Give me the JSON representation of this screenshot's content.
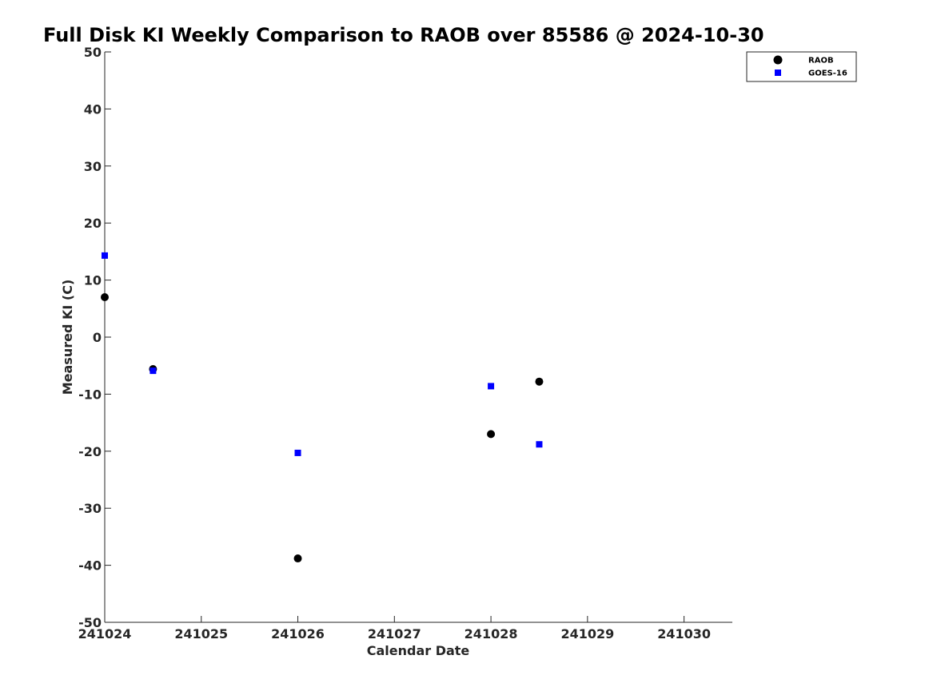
{
  "chart_data": {
    "type": "scatter",
    "title": "Full Disk KI Weekly Comparison to RAOB over 85586 @ 2024-10-30",
    "xlabel": "Calendar Date",
    "ylabel": "Measured KI (C)",
    "xlim": [
      241024,
      241030.5
    ],
    "ylim": [
      -50,
      50
    ],
    "x_ticks": [
      241024,
      241025,
      241026,
      241027,
      241028,
      241029,
      241030
    ],
    "x_tick_labels": [
      "241024",
      "241025",
      "241026",
      "241027",
      "241028",
      "241029",
      "241030"
    ],
    "y_ticks": [
      -50,
      -40,
      -30,
      -20,
      -10,
      0,
      10,
      20,
      30,
      40,
      50
    ],
    "y_tick_labels": [
      "-50",
      "-40",
      "-30",
      "-20",
      "-10",
      "0",
      "10",
      "20",
      "30",
      "40",
      "50"
    ],
    "grid": false,
    "legend_position": "top-right",
    "series": [
      {
        "name": "RAOB",
        "marker": "circle",
        "color": "#000000",
        "x": [
          241024,
          241024.5,
          241026,
          241028,
          241028.5
        ],
        "y": [
          7.0,
          -5.6,
          -38.8,
          -17.0,
          -7.8
        ]
      },
      {
        "name": "GOES-16",
        "marker": "square",
        "color": "#0000ff",
        "x": [
          241024,
          241024.5,
          241026,
          241028,
          241028.5
        ],
        "y": [
          14.3,
          -5.9,
          -20.3,
          -8.6,
          -18.8
        ]
      }
    ]
  }
}
